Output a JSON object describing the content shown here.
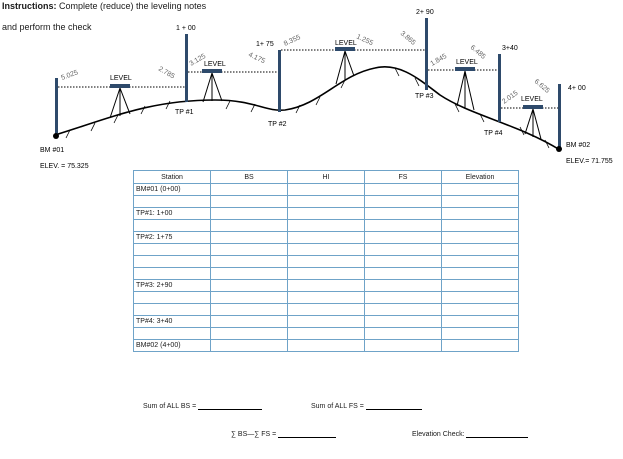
{
  "instructions": {
    "label": "Instructions:",
    "text": " Complete (reduce) the leveling notes",
    "text2": "and perform the check"
  },
  "figure": {
    "stations": [
      "1 + 00",
      "1+ 75",
      "2+ 90",
      "3+40",
      "4+ 00"
    ],
    "readings": [
      "5.025",
      "2.785",
      "3.125",
      "4.175",
      "8.355",
      "1.255",
      "3.865",
      "1.845",
      "6.485",
      "2.015",
      "6.625"
    ],
    "level_label": "LEVEL",
    "turning_points": [
      "TP #1",
      "TP #2",
      "TP #3",
      "TP #4"
    ],
    "bm1": {
      "name": "BM #01",
      "elev_label": "ELEV. = ",
      "elev": "75.325"
    },
    "bm2": {
      "name": "BM #02",
      "elev_label": "ELEV.= ",
      "elev": "71.755"
    }
  },
  "table": {
    "headers": [
      "Station",
      "BS",
      "HI",
      "FS",
      "Elevation"
    ],
    "rows": [
      "BM#01 (0+00)",
      "",
      "TP#1:  1+00",
      "",
      "TP#2:  1+75",
      "",
      "",
      "",
      "TP#3:  2+90",
      "",
      "",
      "TP#4:  3+40",
      "",
      "BM#02 (4+00)"
    ]
  },
  "footer": {
    "sum_bs": "Sum of ALL BS = ",
    "sum_fs": "Sum of ALL FS = ",
    "diff": "∑ BS—∑ FS = ",
    "check": "Elevation Check:"
  }
}
